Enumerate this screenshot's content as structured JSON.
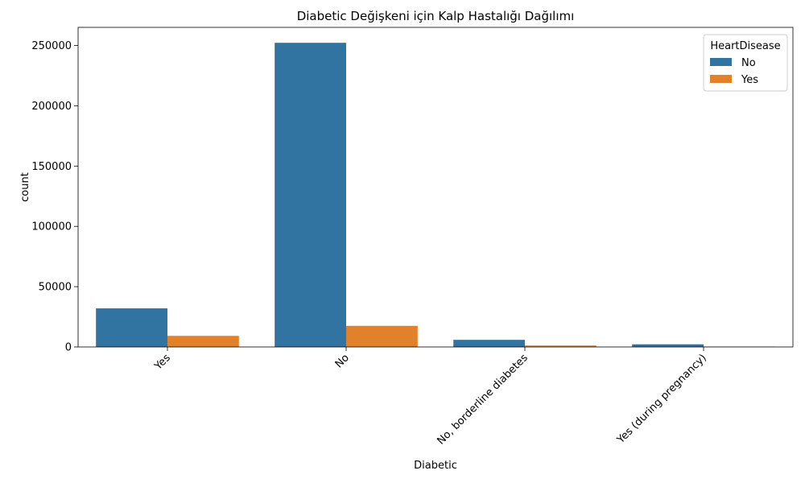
{
  "chart_data": {
    "type": "bar",
    "title": "Diabetic Değişkeni için Kalp Hastalığı Dağılımı",
    "xlabel": "Diabetic",
    "ylabel": "count",
    "categories": [
      "Yes",
      "No",
      "No, borderline diabetes",
      "Yes (during pregnancy)"
    ],
    "series": [
      {
        "name": "No",
        "color": "#3274a1",
        "values": [
          32000,
          252200,
          5900,
          2200
        ]
      },
      {
        "name": "Yes",
        "color": "#e1812c",
        "values": [
          9200,
          17500,
          1200,
          300
        ]
      }
    ],
    "yticks": [
      0,
      50000,
      100000,
      150000,
      200000,
      250000
    ],
    "ylim": [
      0,
      265000
    ],
    "legend": {
      "title": "HeartDisease",
      "position": "top-right"
    },
    "grid": false
  }
}
